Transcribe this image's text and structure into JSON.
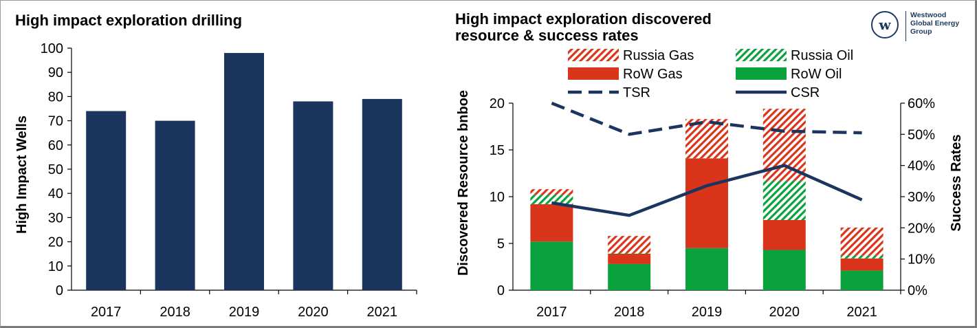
{
  "left_panel": {
    "title": "High impact exploration drilling"
  },
  "right_panel": {
    "title_line1": "High impact exploration discovered",
    "title_line2": "resource & success rates"
  },
  "logo": {
    "mark": "w",
    "line1": "Westwood",
    "line2": "Global Energy",
    "line3": "Group",
    "color": "#1c3a5e"
  },
  "chart_data": [
    {
      "type": "bar",
      "title": "High impact exploration drilling",
      "categories": [
        "2017",
        "2018",
        "2019",
        "2020",
        "2021"
      ],
      "values": [
        74,
        70,
        98,
        78,
        79
      ],
      "xlabel": "",
      "ylabel": "High Impact Wells",
      "ylim": [
        0,
        100
      ],
      "yticks": [
        "0",
        "10",
        "20",
        "30",
        "40",
        "50",
        "60",
        "70",
        "80",
        "90",
        "100"
      ],
      "color": "#1c355e",
      "grid": false
    },
    {
      "type": "bar",
      "stacked": true,
      "title": "High impact exploration discovered resource & success rates",
      "categories": [
        "2017",
        "2018",
        "2019",
        "2020",
        "2021"
      ],
      "ylabel": "Discovered Resource bnboe",
      "ylim": [
        0,
        20
      ],
      "yticks": [
        "0",
        "5",
        "10",
        "15",
        "20"
      ],
      "y2label": "Success Rates",
      "y2lim": [
        0,
        60
      ],
      "y2ticks": [
        "0%",
        "10%",
        "20%",
        "30%",
        "40%",
        "50%",
        "60%"
      ],
      "legend_position": "top",
      "series": [
        {
          "name": "RoW Oil",
          "kind": "bar",
          "style": "solid",
          "color": "#0aa23c",
          "values": [
            5.2,
            2.8,
            4.5,
            4.3,
            2.1
          ]
        },
        {
          "name": "RoW Gas",
          "kind": "bar",
          "style": "solid",
          "color": "#d9351b",
          "values": [
            4.0,
            1.1,
            9.6,
            3.2,
            1.3
          ]
        },
        {
          "name": "Russia Oil",
          "kind": "bar",
          "style": "hatched",
          "color": "#0aa23c",
          "values": [
            1.0,
            0.1,
            0.0,
            4.2,
            0.3
          ]
        },
        {
          "name": "Russia Gas",
          "kind": "bar",
          "style": "hatched",
          "color": "#d9351b",
          "values": [
            0.6,
            1.8,
            4.2,
            7.7,
            3.0
          ]
        },
        {
          "name": "TSR",
          "kind": "line",
          "style": "dashed",
          "axis": "right",
          "color": "#1c355e",
          "values": [
            60,
            50,
            54,
            51,
            50.5
          ]
        },
        {
          "name": "CSR",
          "kind": "line",
          "style": "solid",
          "axis": "right",
          "color": "#1c355e",
          "values": [
            28,
            24,
            33.5,
            40,
            29
          ]
        }
      ]
    }
  ]
}
